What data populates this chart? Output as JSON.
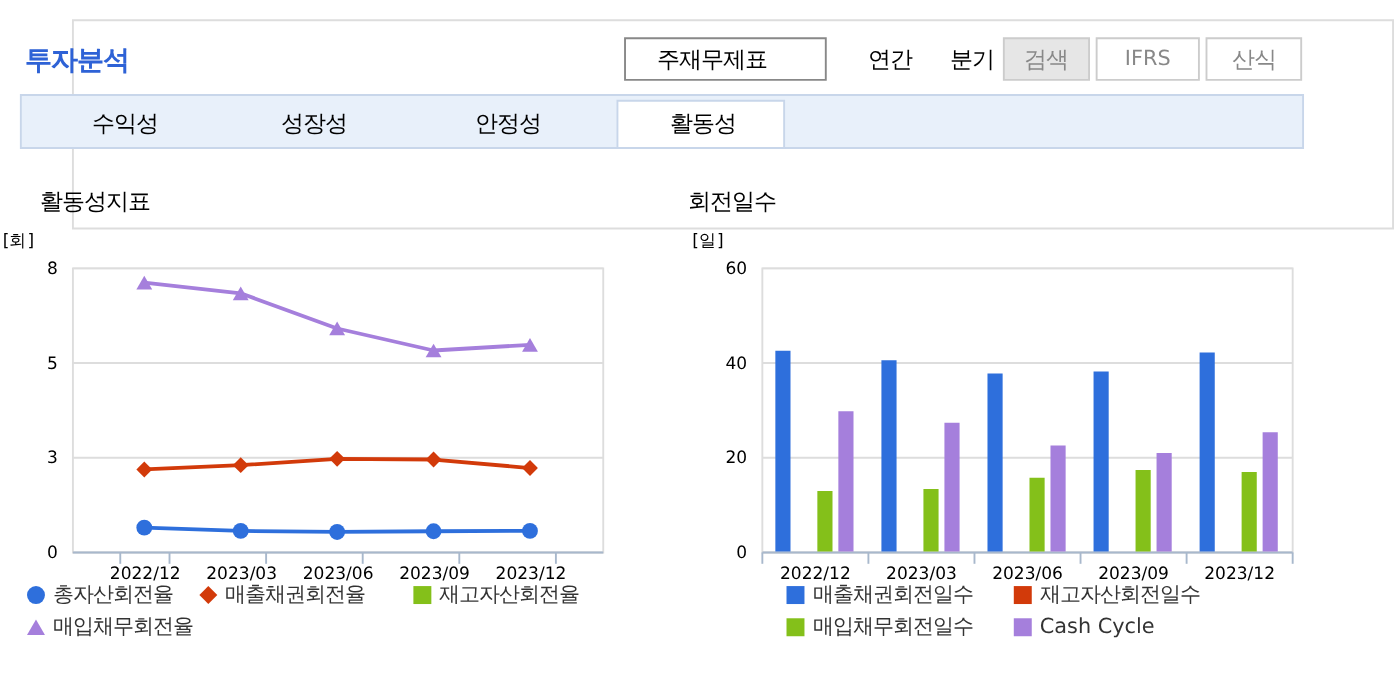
{
  "chart_data": [
    {
      "type": "line",
      "title": "활동성지표",
      "ylabel": "[회]",
      "categories": [
        "2022/12",
        "2023/03",
        "2023/06",
        "2023/09",
        "2023/12"
      ],
      "ylim": [
        0,
        8
      ],
      "yticks": [
        0,
        {
          "value": 2.667,
          "label": "3"
        },
        {
          "value": 5.333,
          "label": "5"
        },
        8
      ],
      "grid": "y",
      "legend": "bottom",
      "line_style": "solid",
      "annotations": [
        "투자분석",
        "주재무제표",
        "연간",
        "분기",
        "검색",
        "IFRS",
        "산식",
        "수익성",
        "성장성",
        "안정성",
        "활동성"
      ],
      "series": [
        {
          "name": "총자산회전율",
          "color": "#2e6fdc",
          "marker": "circle",
          "values": [
            0.67,
            0.58,
            0.55,
            0.57,
            0.58
          ]
        },
        {
          "name": "매출채권회전율",
          "color": "#d23a0a",
          "marker": "diamond",
          "values": [
            2.31,
            2.43,
            2.61,
            2.59,
            2.35
          ]
        },
        {
          "name": "재고자산회전율",
          "color": "#84c01a",
          "marker": "square",
          "values": [
            null,
            null,
            null,
            null,
            null
          ]
        },
        {
          "name": "매입채무회전율",
          "color": "#a57fdc",
          "marker": "triangle",
          "values": [
            7.57,
            7.27,
            6.28,
            5.66,
            5.82
          ]
        }
      ]
    },
    {
      "type": "bar",
      "title": "회전일수",
      "ylabel": "[일]",
      "categories": [
        "2022/12",
        "2023/03",
        "2023/06",
        "2023/09",
        "2023/12"
      ],
      "ylim": [
        0,
        60
      ],
      "yticks": [
        0,
        20,
        40,
        60
      ],
      "grid": "y",
      "legend": "bottom",
      "series": [
        {
          "name": "매출채권회전일수",
          "color": "#2466dc",
          "values": [
            42.4,
            40.4,
            37.6,
            38,
            42
          ]
        },
        {
          "name": "재고자산회전일수",
          "color": "#d33a00",
          "values": [
            null,
            null,
            null,
            null,
            null
          ]
        },
        {
          "name": "매입채무회전일수",
          "color": "#84c01a",
          "values": [
            12.8,
            13.2,
            15.6,
            17.2,
            16.8
          ]
        },
        {
          "name": "Cash Cycle",
          "color": "#a57fdc",
          "values": [
            29.6,
            27.2,
            22.4,
            20.8,
            25.2
          ]
        }
      ]
    }
  ]
}
